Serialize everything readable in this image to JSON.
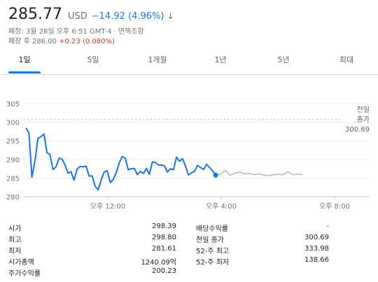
{
  "quote": {
    "price": "285.77",
    "currency": "USD",
    "change": "−14.92 (4.96%)",
    "arrow": "↓",
    "close_label": "폐장: 3월 28일 오후 6:51 GMT-4",
    "disclaimer": "면책조항",
    "after_hours_label": "폐장 후 286.00",
    "after_hours_change": "+0.23 (0.080%)"
  },
  "tabs": [
    "1일",
    "5일",
    "1개월",
    "1년",
    "5년",
    "최대"
  ],
  "active_tab": "1일",
  "chart_data": {
    "type": "line",
    "y_ticks": [
      305,
      300,
      295,
      290,
      285,
      280
    ],
    "ylim": [
      280,
      305
    ],
    "x_ticks": [
      "오후 12:00",
      "오후 4:00",
      "오후 8:00"
    ],
    "prev_close": 300.69,
    "prev_close_label_1": "전일",
    "prev_close_label_2": "종가",
    "prev_close_value": "300.69",
    "series": [
      {
        "values": [
          298.4,
          297.2,
          285.2,
          289.5,
          295.6,
          296.1,
          296.8,
          291.8,
          291.3,
          287.3,
          288.0,
          290.3,
          290.1,
          288.5,
          286.3,
          286.7,
          284.4,
          287.4,
          288.1,
          288.0,
          288.2,
          285.5,
          285.6,
          282.8,
          281.8,
          284.5,
          286.6,
          287.0,
          283.8,
          284.6,
          286.4,
          289.0,
          290.8,
          290.3,
          287.2,
          287.5,
          287.6,
          285.9,
          286.8,
          286.2,
          287.6,
          286.0,
          289.3,
          289.2,
          288.5,
          288.5,
          288.3,
          286.6,
          287.5,
          287.2,
          290.6,
          289.5,
          290.2,
          288.2,
          285.8,
          286.4,
          286.8,
          288.4,
          287.8,
          287.3,
          288.7,
          287.8,
          287.0,
          285.77
        ]
      },
      {
        "values": [
          285.77,
          286.0,
          287.1,
          285.7,
          286.3,
          286.6,
          286.1,
          286.2,
          285.9,
          286.1,
          285.8,
          285.6,
          285.9,
          286.0,
          285.9,
          286.7,
          285.9,
          286.0,
          286.0
        ]
      }
    ]
  },
  "stats": {
    "left": [
      {
        "k": "시가",
        "v": "298.39"
      },
      {
        "k": "최고",
        "v": "298.80"
      },
      {
        "k": "최저",
        "v": "281.61"
      },
      {
        "k": "시가총액",
        "v": "1240.09억"
      },
      {
        "k": "주가수익률",
        "v": "200.23"
      }
    ],
    "right": [
      {
        "k": "배당수익률",
        "v": "-"
      },
      {
        "k": "전일 종가",
        "v": "300.69"
      },
      {
        "k": "52-주 최고",
        "v": "333.98"
      },
      {
        "k": "52-주 최저",
        "v": "138.66"
      }
    ]
  },
  "colors": {
    "line": "#1a73e8",
    "after_hours_line": "#bdc1c6",
    "negative": "#1a73e8",
    "positive": "#d93025"
  }
}
